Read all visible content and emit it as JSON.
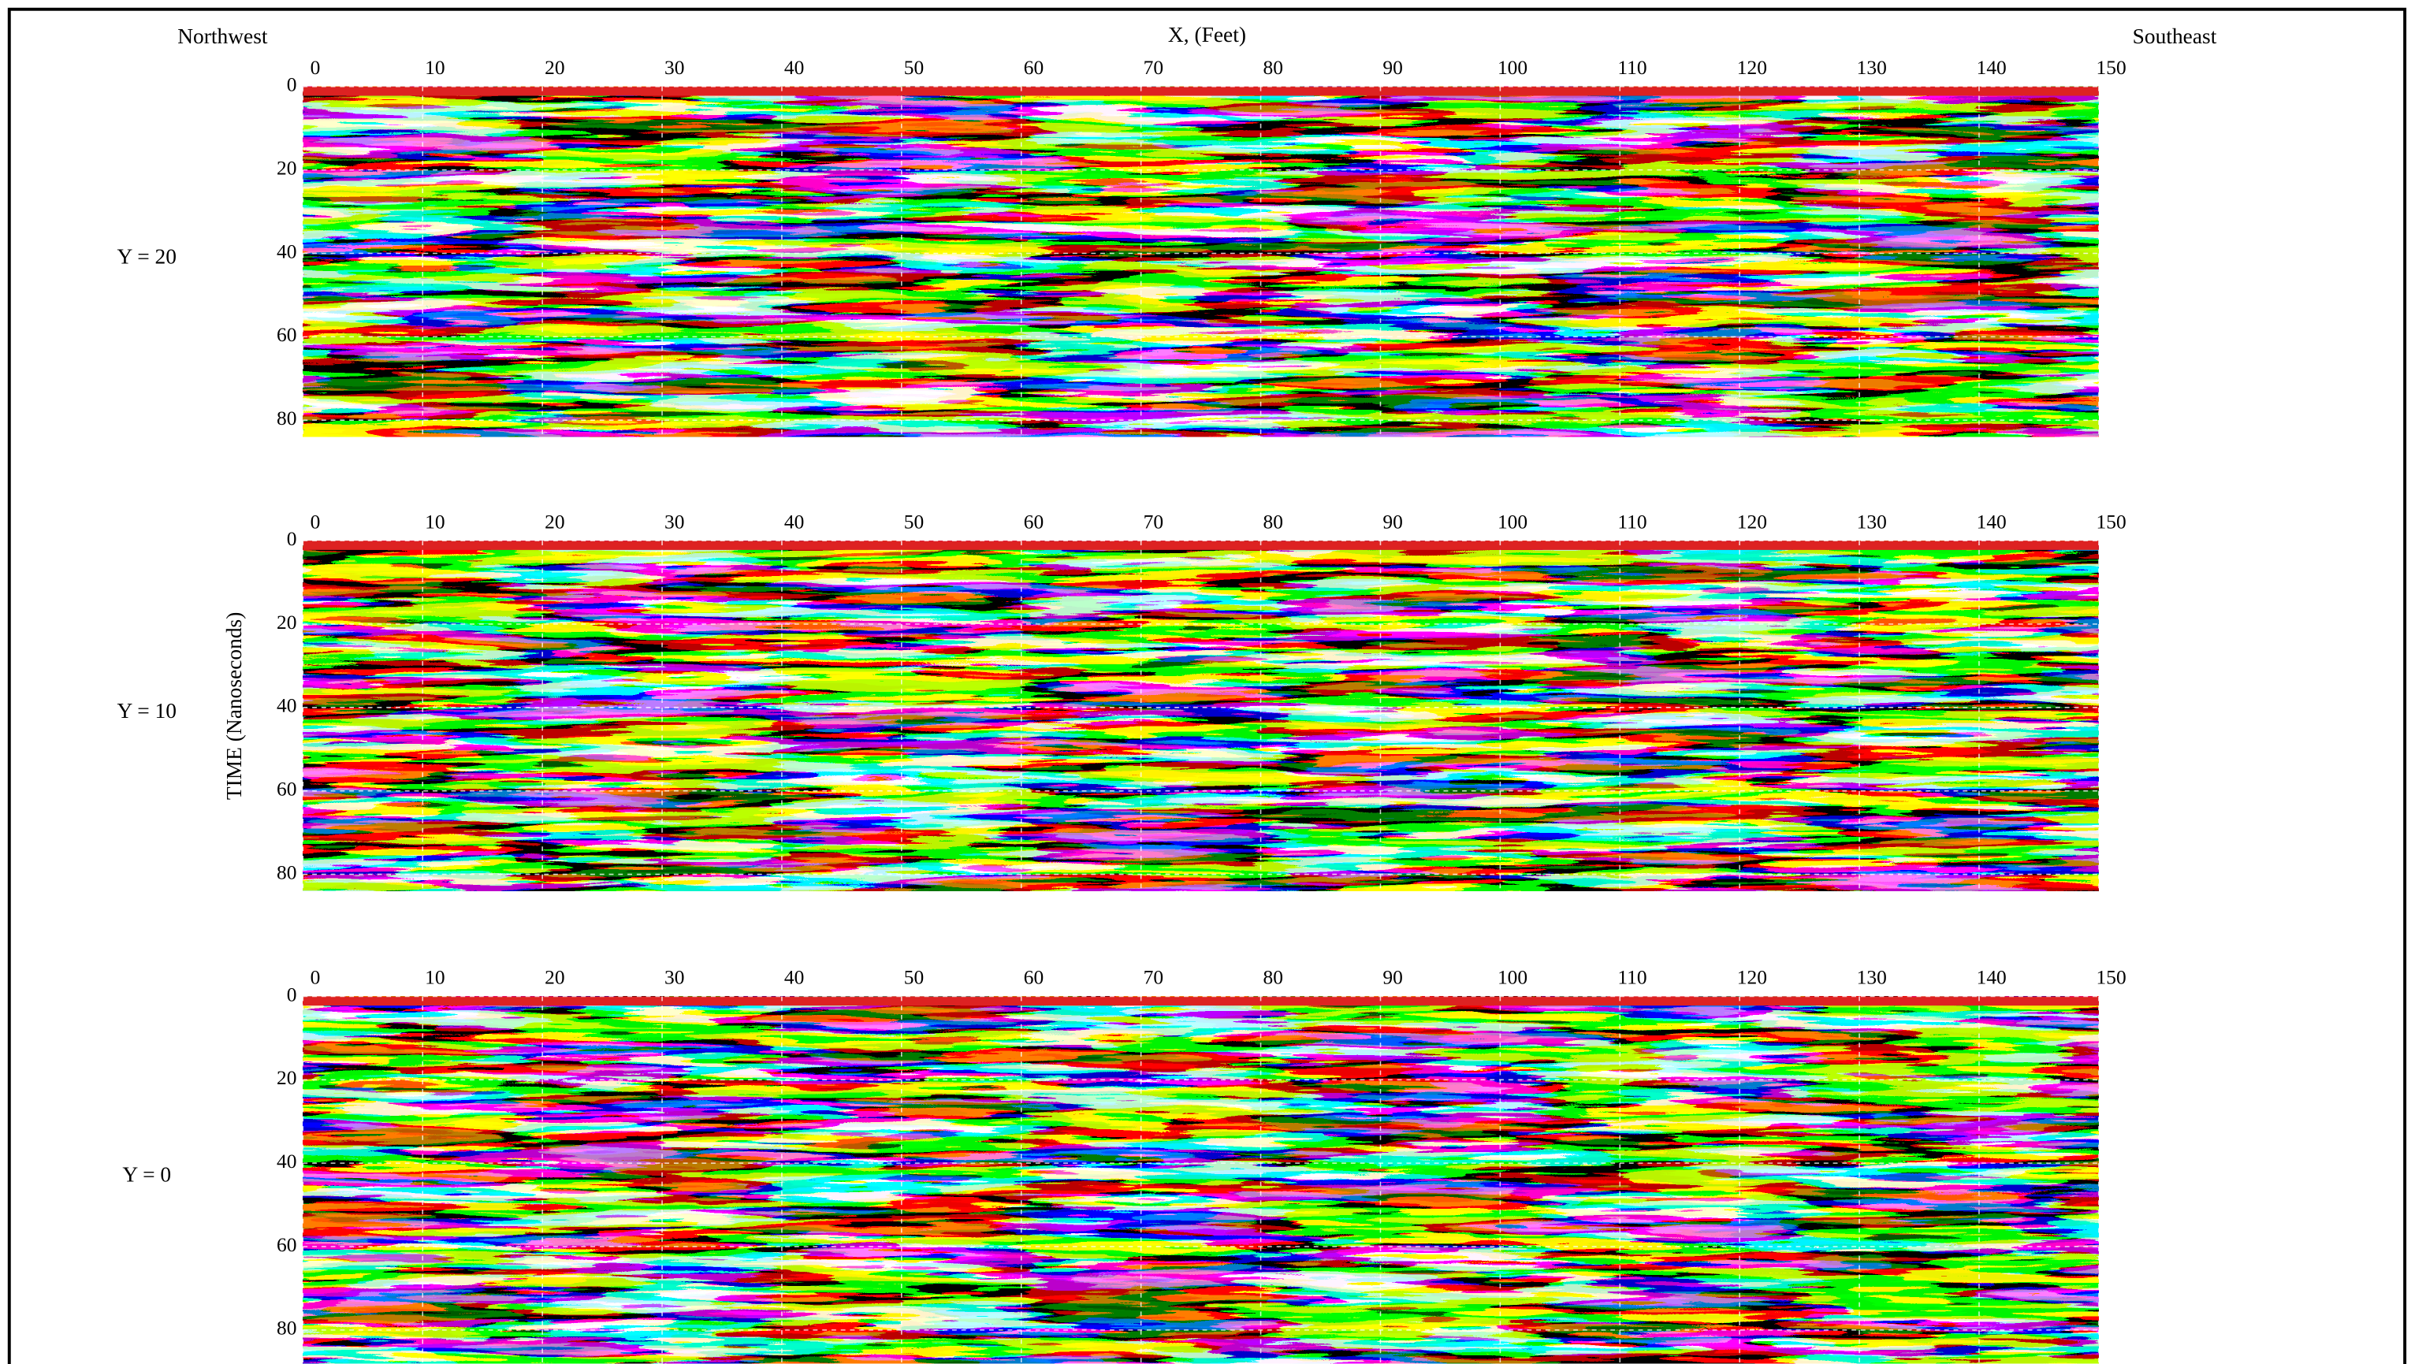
{
  "header": {
    "left": "Northwest",
    "title": "X, (Feet)",
    "right": "Southeast"
  },
  "y_axis_label": "TIME (Nanoseconds)",
  "panels": [
    {
      "label": "Y = 20",
      "xlim": [
        0,
        150
      ],
      "xticks": [
        0,
        10,
        20,
        30,
        40,
        50,
        60,
        70,
        80,
        90,
        100,
        110,
        120,
        130,
        140,
        150
      ],
      "ylim": [
        0,
        84
      ],
      "yticks": [
        0,
        20,
        40,
        60,
        80
      ]
    },
    {
      "label": "Y = 10",
      "xlim": [
        0,
        150
      ],
      "xticks": [
        0,
        10,
        20,
        30,
        40,
        50,
        60,
        70,
        80,
        90,
        100,
        110,
        120,
        130,
        140,
        150
      ],
      "ylim": [
        0,
        84
      ],
      "yticks": [
        0,
        20,
        40,
        60,
        80
      ]
    },
    {
      "label": "Y = 0",
      "xlim": [
        0,
        150
      ],
      "xticks": [
        0,
        10,
        20,
        30,
        40,
        50,
        60,
        70,
        80,
        90,
        100,
        110,
        120,
        130,
        140,
        150
      ],
      "ylim": [
        0,
        88
      ],
      "yticks": [
        0,
        20,
        40,
        60,
        80
      ]
    }
  ]
}
